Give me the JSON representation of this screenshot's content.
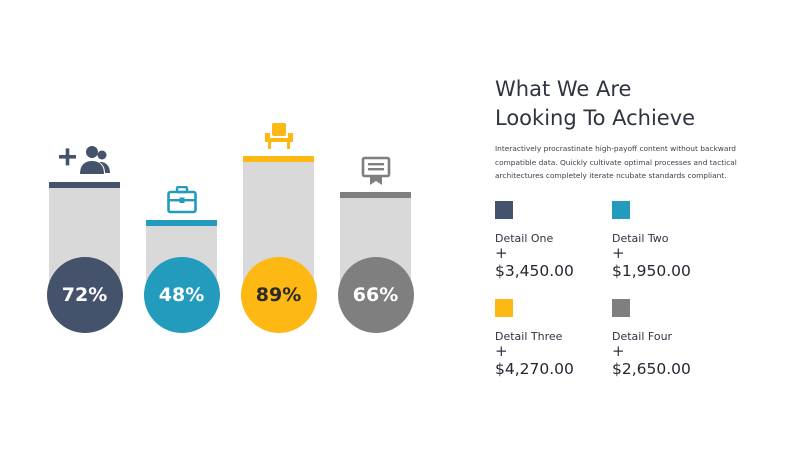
{
  "header": {
    "title_line1": "What We Are",
    "title_line2": "Looking To Achieve",
    "body": "Interactively procrastinate high-payoff content without backward compatible data. Quickly cultivate optimal processes and tactical architectures completely iterate ncubate standards compliant."
  },
  "chart_data": {
    "type": "bar",
    "categories": [
      "team",
      "business",
      "seating",
      "certificate"
    ],
    "values": [
      72,
      48,
      89,
      66
    ],
    "value_labels": [
      "72%",
      "48%",
      "89%",
      "66%"
    ],
    "colors": [
      "#45526b",
      "#229bbd",
      "#fdb813",
      "#7f7f7f"
    ],
    "icons": [
      "add-people-icon",
      "briefcase-icon",
      "chair-icon",
      "certificate-icon"
    ],
    "ylim": [
      0,
      100
    ]
  },
  "details": [
    {
      "label": "Detail One",
      "plus": "+",
      "value": "$3,450.00",
      "color": "#45526b"
    },
    {
      "label": "Detail Two",
      "plus": "+",
      "value": "$1,950.00",
      "color": "#229bbd"
    },
    {
      "label": "Detail Three",
      "plus": "+",
      "value": "$4,270.00",
      "color": "#fdb813"
    },
    {
      "label": "Detail Four",
      "plus": "+",
      "value": "$2,650.00",
      "color": "#7f7f7f"
    }
  ]
}
